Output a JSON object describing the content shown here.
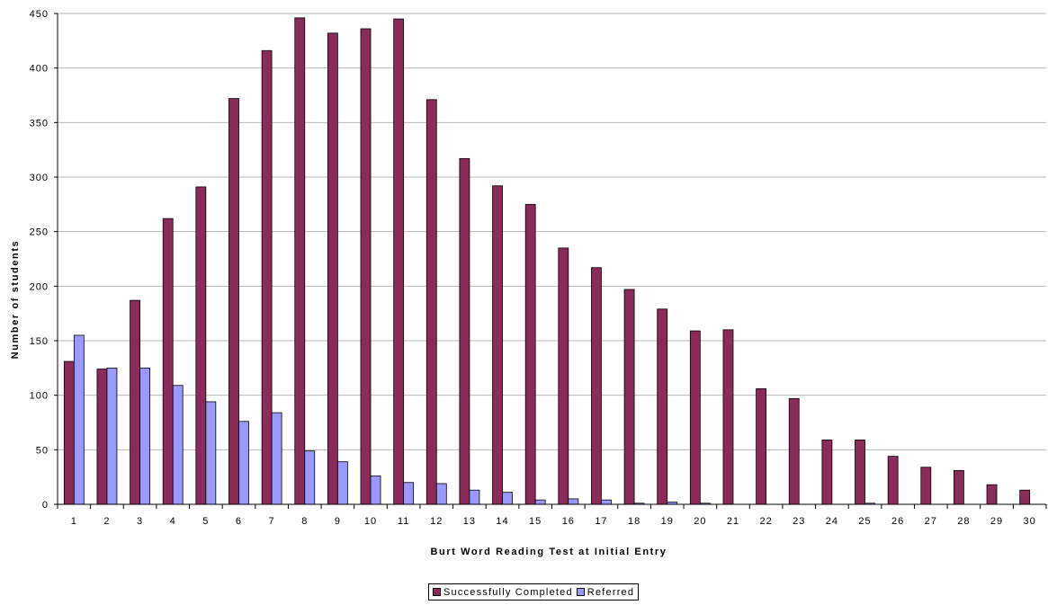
{
  "chart_data": {
    "type": "bar",
    "title": "",
    "xlabel": "Burt Word Reading Test at Initial Entry",
    "ylabel": "Number of students",
    "ylim": [
      0,
      450
    ],
    "yticks": [
      "0",
      "50",
      "100",
      "150",
      "200",
      "250",
      "300",
      "350",
      "400",
      "450"
    ],
    "grid": true,
    "legend_position": "bottom",
    "categories": [
      "1",
      "2",
      "3",
      "4",
      "5",
      "6",
      "7",
      "8",
      "9",
      "10",
      "11",
      "12",
      "13",
      "14",
      "15",
      "16",
      "17",
      "18",
      "19",
      "20",
      "21",
      "22",
      "23",
      "24",
      "25",
      "26",
      "27",
      "28",
      "29",
      "30"
    ],
    "series": [
      {
        "name": "Successfully Completed",
        "color": "#8B2B5A",
        "values": [
          131,
          124,
          187,
          262,
          291,
          372,
          416,
          446,
          432,
          436,
          445,
          371,
          317,
          292,
          275,
          235,
          217,
          197,
          179,
          159,
          160,
          106,
          97,
          59,
          59,
          44,
          34,
          31,
          18,
          13
        ]
      },
      {
        "name": "Referred",
        "color": "#9999FF",
        "values": [
          155,
          125,
          125,
          109,
          94,
          76,
          84,
          49,
          39,
          26,
          20,
          19,
          13,
          11,
          4,
          5,
          4,
          1,
          2,
          1,
          0,
          0,
          0,
          0,
          1,
          0,
          0,
          0,
          0,
          0
        ]
      }
    ]
  }
}
